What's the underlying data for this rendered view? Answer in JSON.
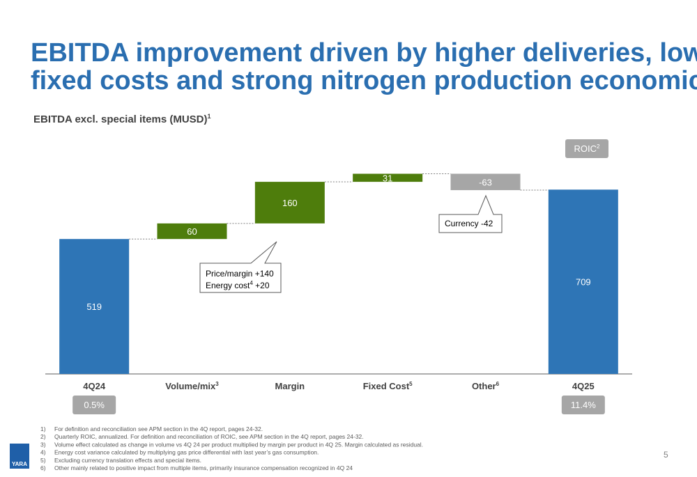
{
  "chart_data": {
    "type": "waterfall",
    "title": [
      "EBITDA improvement driven by higher deliveries, lower",
      "fixed costs and strong nitrogen production economics"
    ],
    "subtitle": "EBITDA excl. special items (MUSD)",
    "subtitle_superscript": "1",
    "categories": [
      "4Q24",
      "Volume/mix",
      "Margin",
      "Fixed Cost",
      "Other",
      "4Q25"
    ],
    "category_superscripts": [
      null,
      "3",
      null,
      "5",
      "6",
      null
    ],
    "values": [
      519,
      60,
      160,
      31,
      -63,
      709
    ],
    "kinds": [
      "total",
      "delta",
      "delta",
      "delta",
      "delta",
      "total"
    ],
    "colors": {
      "total": "#2e75b6",
      "increase": "#4e7d0c",
      "decrease": "#a6a6a6"
    },
    "ylim": [
      0,
      900
    ],
    "roic_label": "ROIC",
    "roic_superscript": "2",
    "roic": [
      {
        "category": 0,
        "label": "0.5%"
      },
      {
        "category": 5,
        "label": "11.4%"
      }
    ],
    "annotations": [
      {
        "lines": [
          {
            "text": "Price/margin +140"
          },
          {
            "text": "Energy cost",
            "sup": "4",
            "after": " +20"
          }
        ]
      },
      {
        "lines": [
          {
            "text": "Currency -42"
          }
        ]
      }
    ]
  },
  "footnotes": [
    {
      "marker": "1)",
      "text": "For definition and reconciliation see APM section in the 4Q report, pages 24-32."
    },
    {
      "marker": "2)",
      "text": "Quarterly ROIC, annualized. For definition and reconciliation of ROIC, see APM section in the 4Q report, pages 24-32."
    },
    {
      "marker": "3)",
      "text": "Volume effect calculated as change in volume vs 4Q 24 per product multiplied by margin per product in 4Q 25. Margin calculated as residual."
    },
    {
      "marker": "4)",
      "text": "Energy cost variance calculated by multiplying gas price differential with last year’s gas consumption."
    },
    {
      "marker": "5)",
      "text": "Excluding currency translation effects and special items."
    },
    {
      "marker": "6)",
      "text": "Other mainly related to positive impact from multiple items, primarily insurance compensation recognized in 4Q 24"
    }
  ],
  "page_number": "5",
  "logo": "YARA"
}
